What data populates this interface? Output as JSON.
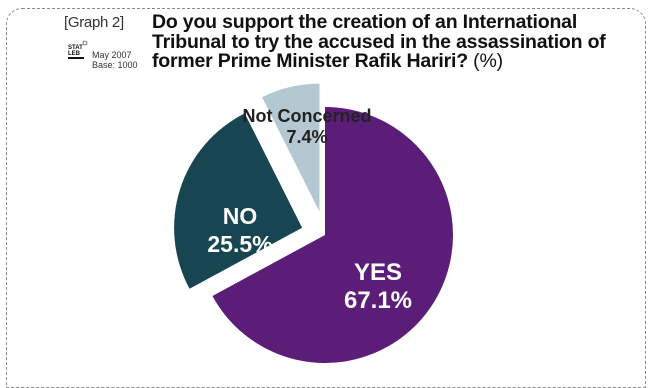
{
  "graph_label": "[Graph 2]",
  "logo_icon": "statistics-lebanon-logo",
  "meta": {
    "date": "May 2007",
    "base": "Base: 1000"
  },
  "title": "Do you support the creation of an International Tribunal to try the accused in the assassination of former Prime Minister Rafik Hariri?",
  "title_unit": "(%)",
  "chart_data": {
    "type": "pie",
    "title": "Do you support the creation of an International Tribunal to try the accused in the assassination of former Prime Minister Rafik Hariri? (%)",
    "slices": [
      {
        "label": "YES",
        "value": 67.1,
        "value_label": "67.1%",
        "color": "#5b1d78",
        "text_color": "#ffffff",
        "exploded": false
      },
      {
        "label": "NO",
        "value": 25.5,
        "value_label": "25.5%",
        "color": "#174552",
        "text_color": "#ffffff",
        "exploded": true
      },
      {
        "label": "Not Concerned",
        "value": 7.4,
        "value_label": "7.4%",
        "color": "#b4c8d2",
        "text_color": "#222222",
        "exploded": true
      }
    ]
  }
}
